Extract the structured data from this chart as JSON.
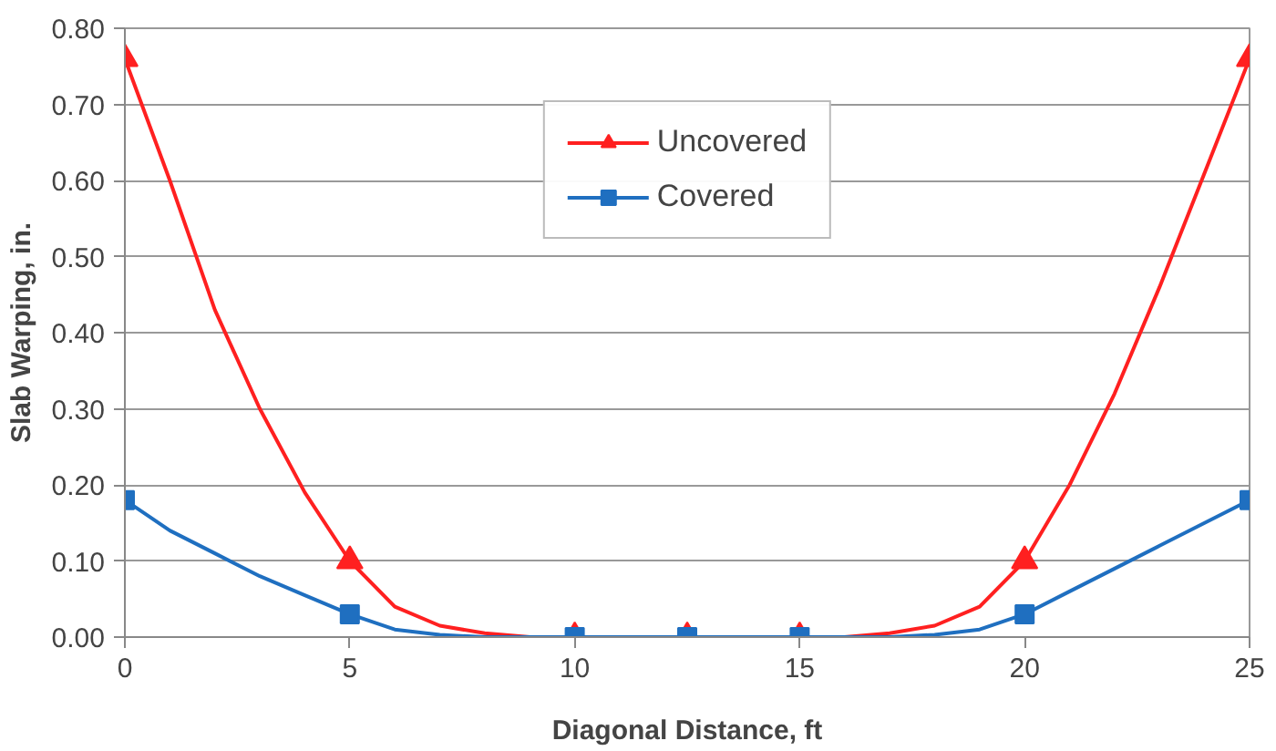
{
  "chart_data": {
    "type": "line",
    "xlabel": "Diagonal Distance, ft",
    "ylabel": "Slab Warping, in.",
    "xlim": [
      0,
      25
    ],
    "xticks": [
      0,
      5,
      10,
      15,
      20,
      25
    ],
    "ylim": [
      0,
      0.8
    ],
    "yticks": [
      {
        "value": 0,
        "label": "0.00"
      },
      {
        "value": 0.1,
        "label": "0.10"
      },
      {
        "value": 0.2,
        "label": "0.20"
      },
      {
        "value": 0.3,
        "label": "0.30"
      },
      {
        "value": 0.4,
        "label": "0.40"
      },
      {
        "value": 0.5,
        "label": "0.50"
      },
      {
        "value": 0.6,
        "label": "0.60"
      },
      {
        "value": 0.7,
        "label": "0.70"
      },
      {
        "value": 0.8,
        "label": "0.80"
      }
    ],
    "grid": "y",
    "legend": "top",
    "line_style": "solid",
    "series": [
      {
        "marker": "none",
        "color": "#ff2020",
        "x": [
          0,
          1,
          2,
          3,
          4,
          5,
          6,
          7,
          8,
          9,
          10,
          12.5,
          15,
          16,
          17,
          18,
          19,
          20,
          21,
          22,
          23,
          24,
          25
        ],
        "values": [
          0.76,
          0.6,
          0.43,
          0.3,
          0.19,
          0.1,
          0.04,
          0.015,
          0.005,
          0,
          0,
          0,
          0,
          0,
          0.005,
          0.015,
          0.04,
          0.1,
          0.2,
          0.32,
          0.46,
          0.61,
          0.76
        ]
      },
      {
        "type": "scatter",
        "name": "Uncovered",
        "marker": "triangle",
        "color": "#ff2020",
        "x": [
          0,
          5,
          10,
          12.5,
          15,
          20,
          25
        ],
        "values": [
          0.76,
          0.1,
          0,
          0,
          0,
          0.1,
          0.76
        ]
      },
      {
        "marker": "none",
        "color": "#1f6fc0",
        "x": [
          0,
          1,
          2,
          3,
          4,
          5,
          6,
          7,
          8,
          10,
          12.5,
          15,
          17,
          18,
          19,
          20,
          21,
          22,
          23,
          24,
          25
        ],
        "values": [
          0.18,
          0.14,
          0.11,
          0.08,
          0.055,
          0.03,
          0.01,
          0.003,
          0,
          0,
          0,
          0,
          0,
          0.003,
          0.01,
          0.03,
          0.06,
          0.09,
          0.12,
          0.15,
          0.18
        ]
      },
      {
        "type": "scatter",
        "name": "Covered",
        "marker": "square",
        "color": "#1f6fc0",
        "x": [
          0,
          5,
          10,
          12.5,
          15,
          20,
          25
        ],
        "values": [
          0.18,
          0.03,
          0,
          0,
          0,
          0.03,
          0.18
        ]
      }
    ]
  }
}
